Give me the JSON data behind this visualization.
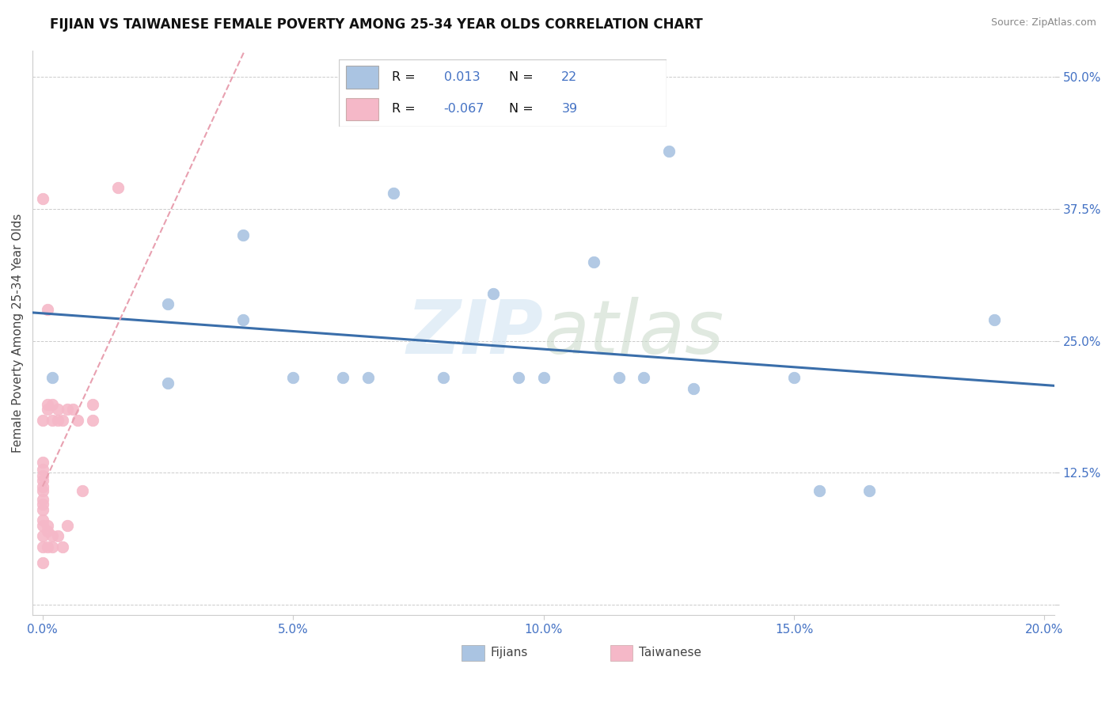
{
  "title": "FIJIAN VS TAIWANESE FEMALE POVERTY AMONG 25-34 YEAR OLDS CORRELATION CHART",
  "source": "Source: ZipAtlas.com",
  "ylabel_label": "Female Poverty Among 25-34 Year Olds",
  "xlim": [
    -0.002,
    0.202
  ],
  "ylim": [
    -0.01,
    0.525
  ],
  "xticks": [
    0.0,
    0.05,
    0.1,
    0.15,
    0.2
  ],
  "xticklabels": [
    "0.0%",
    "5.0%",
    "10.0%",
    "15.0%",
    "20.0%"
  ],
  "ytick_positions": [
    0.0,
    0.125,
    0.25,
    0.375,
    0.5
  ],
  "yticklabels": [
    "",
    "12.5%",
    "25.0%",
    "37.5%",
    "50.0%"
  ],
  "fijian_R": "0.013",
  "fijian_N": "22",
  "taiwanese_R": "-0.067",
  "taiwanese_N": "39",
  "fijian_color": "#aac4e2",
  "taiwanese_color": "#f5b8c8",
  "fijian_line_color": "#3a6eaa",
  "taiwanese_line_color": "#e8a0b0",
  "watermark_zip": "ZIP",
  "watermark_atlas": "atlas",
  "background_color": "#ffffff",
  "grid_color": "#cccccc",
  "fijian_x": [
    0.002,
    0.025,
    0.025,
    0.04,
    0.04,
    0.05,
    0.06,
    0.065,
    0.07,
    0.08,
    0.09,
    0.095,
    0.1,
    0.11,
    0.115,
    0.12,
    0.125,
    0.13,
    0.15,
    0.155,
    0.165,
    0.19
  ],
  "fijian_y": [
    0.215,
    0.21,
    0.285,
    0.27,
    0.35,
    0.215,
    0.215,
    0.215,
    0.39,
    0.215,
    0.295,
    0.215,
    0.215,
    0.325,
    0.215,
    0.215,
    0.43,
    0.205,
    0.215,
    0.108,
    0.108,
    0.27
  ],
  "taiwanese_x": [
    0.0,
    0.0,
    0.0,
    0.0,
    0.0,
    0.0,
    0.0,
    0.0,
    0.0,
    0.0,
    0.0,
    0.0,
    0.0,
    0.0,
    0.0,
    0.0,
    0.001,
    0.001,
    0.001,
    0.001,
    0.001,
    0.001,
    0.002,
    0.002,
    0.002,
    0.002,
    0.003,
    0.003,
    0.003,
    0.004,
    0.004,
    0.005,
    0.005,
    0.006,
    0.007,
    0.008,
    0.01,
    0.01,
    0.015
  ],
  "taiwanese_y": [
    0.04,
    0.055,
    0.065,
    0.075,
    0.08,
    0.09,
    0.095,
    0.1,
    0.108,
    0.112,
    0.118,
    0.122,
    0.128,
    0.135,
    0.175,
    0.385,
    0.055,
    0.07,
    0.075,
    0.185,
    0.19,
    0.28,
    0.055,
    0.065,
    0.175,
    0.19,
    0.065,
    0.175,
    0.185,
    0.055,
    0.175,
    0.075,
    0.185,
    0.185,
    0.175,
    0.108,
    0.19,
    0.175,
    0.395
  ],
  "title_fontsize": 12,
  "source_fontsize": 9,
  "tick_fontsize": 11,
  "ylabel_fontsize": 11
}
